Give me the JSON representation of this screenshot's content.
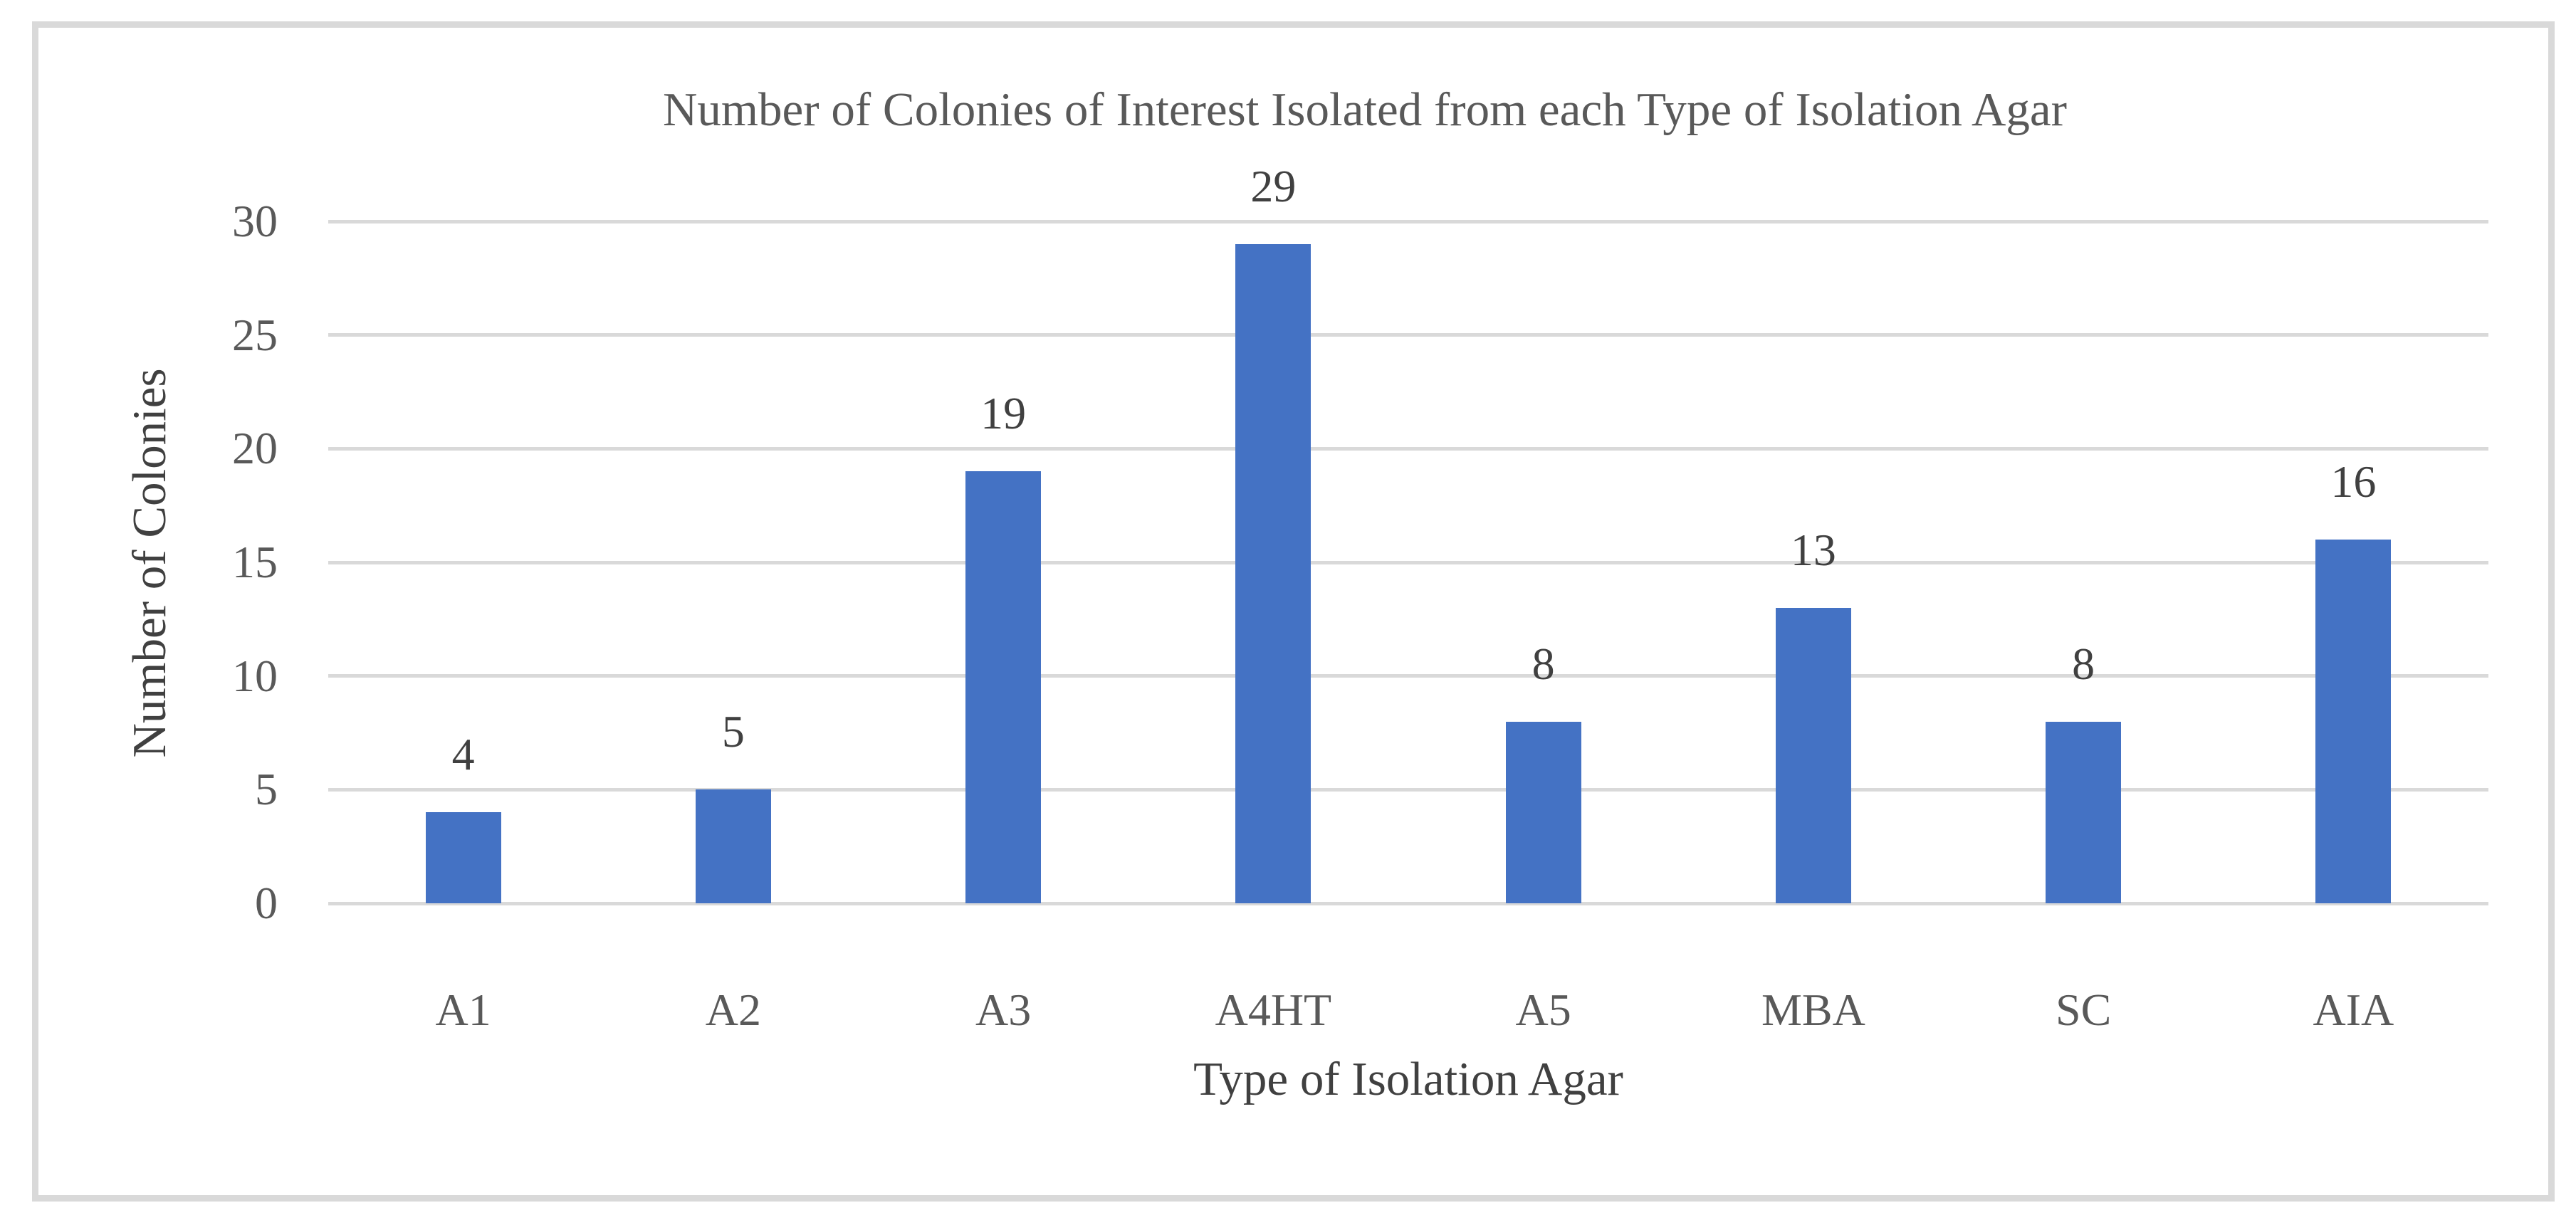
{
  "chart_data": {
    "type": "bar",
    "title": "Number of Colonies of Interest Isolated from each Type of Isolation Agar",
    "xlabel": "Type of Isolation Agar",
    "ylabel": "Number of Colonies",
    "categories": [
      "A1",
      "A2",
      "A3",
      "A4HT",
      "A5",
      "MBA",
      "SC",
      "AIA"
    ],
    "values": [
      4,
      5,
      19,
      29,
      8,
      13,
      8,
      16
    ],
    "yticks": [
      0,
      5,
      10,
      15,
      20,
      25,
      30
    ],
    "ylim": [
      0,
      30
    ],
    "grid": "horizontal",
    "legend_position": "none",
    "data_labels": "above-bars",
    "colors": {
      "bar": "#4472C4",
      "gridline": "#D9D9D9",
      "frame_border": "#D9D9D9",
      "title": "#595959",
      "tick_label": "#595959",
      "axis_title": "#404040",
      "data_label": "#404040",
      "background": "#FFFFFF"
    }
  }
}
